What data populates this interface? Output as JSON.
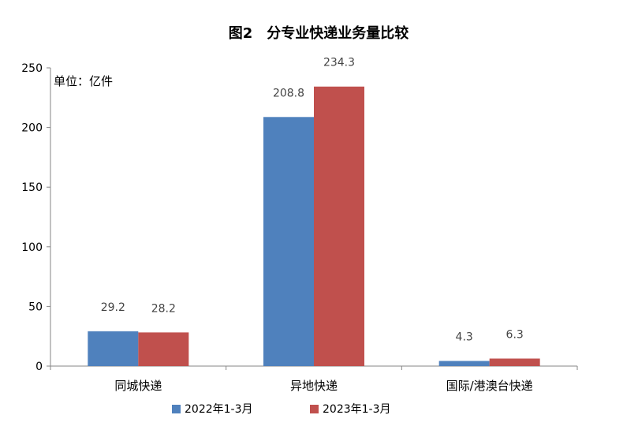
{
  "chart_data": {
    "type": "bar",
    "title": "图2　分专业快递业务量比较",
    "unit_label": "单位：亿件",
    "categories": [
      "同城快递",
      "异地快递",
      "国际/港澳台快递"
    ],
    "series": [
      {
        "name": "2022年1-3月",
        "values": [
          29.2,
          208.8,
          4.3
        ],
        "color": "#4F81BD",
        "labels": [
          "29.2",
          "208.8",
          "4.3"
        ]
      },
      {
        "name": "2023年1-3月",
        "values": [
          28.2,
          234.3,
          6.3
        ],
        "color": "#C0504D",
        "labels": [
          "28.2",
          "234.3",
          "6.3"
        ]
      }
    ],
    "ylim": [
      0,
      250
    ],
    "yticks": [
      0,
      50,
      100,
      150,
      200,
      250
    ],
    "ytick_labels": [
      "0",
      "50",
      "100",
      "150",
      "200",
      "250"
    ],
    "grid": false,
    "legend_position": "bottom"
  }
}
